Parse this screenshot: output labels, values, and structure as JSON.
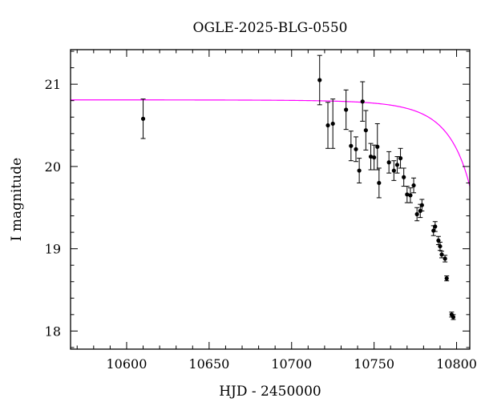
{
  "chart_data": {
    "type": "scatter",
    "title": "OGLE-2025-BLG-0550",
    "xlabel": "HJD - 2450000",
    "ylabel": "I magnitude",
    "xlim": [
      10566,
      10808
    ],
    "ylim": [
      21.42,
      17.78
    ],
    "y_inverted": true,
    "xticks_major": [
      10600,
      10650,
      10700,
      10750,
      10800
    ],
    "xticks_minor_step": 10,
    "yticks_major": [
      18,
      19,
      20,
      21
    ],
    "yticks_minor_step": 0.2,
    "grid": false,
    "series": [
      {
        "kind": "points_with_errorbars",
        "color": "#000000",
        "points": [
          {
            "x": 10610,
            "y": 20.58,
            "err": 0.24
          },
          {
            "x": 10717,
            "y": 21.05,
            "err": 0.3
          },
          {
            "x": 10722,
            "y": 20.5,
            "err": 0.28
          },
          {
            "x": 10725,
            "y": 20.52,
            "err": 0.3
          },
          {
            "x": 10733,
            "y": 20.69,
            "err": 0.24
          },
          {
            "x": 10736,
            "y": 20.25,
            "err": 0.18
          },
          {
            "x": 10739,
            "y": 20.21,
            "err": 0.15
          },
          {
            "x": 10741,
            "y": 19.95,
            "err": 0.15
          },
          {
            "x": 10743,
            "y": 20.79,
            "err": 0.24
          },
          {
            "x": 10745,
            "y": 20.44,
            "err": 0.24
          },
          {
            "x": 10748,
            "y": 20.12,
            "err": 0.16
          },
          {
            "x": 10750,
            "y": 20.11,
            "err": 0.15
          },
          {
            "x": 10752,
            "y": 20.24,
            "err": 0.28
          },
          {
            "x": 10753,
            "y": 19.8,
            "err": 0.18
          },
          {
            "x": 10759,
            "y": 20.05,
            "err": 0.13
          },
          {
            "x": 10762,
            "y": 19.95,
            "err": 0.12
          },
          {
            "x": 10764,
            "y": 20.02,
            "err": 0.1
          },
          {
            "x": 10766,
            "y": 20.1,
            "err": 0.12
          },
          {
            "x": 10768,
            "y": 19.87,
            "err": 0.11
          },
          {
            "x": 10770,
            "y": 19.66,
            "err": 0.1
          },
          {
            "x": 10772,
            "y": 19.65,
            "err": 0.09
          },
          {
            "x": 10774,
            "y": 19.77,
            "err": 0.09
          },
          {
            "x": 10776,
            "y": 19.42,
            "err": 0.08
          },
          {
            "x": 10778,
            "y": 19.46,
            "err": 0.08
          },
          {
            "x": 10779,
            "y": 19.53,
            "err": 0.07
          },
          {
            "x": 10786,
            "y": 19.22,
            "err": 0.06
          },
          {
            "x": 10787,
            "y": 19.27,
            "err": 0.06
          },
          {
            "x": 10789,
            "y": 19.1,
            "err": 0.05
          },
          {
            "x": 10790,
            "y": 19.03,
            "err": 0.05
          },
          {
            "x": 10791,
            "y": 18.93,
            "err": 0.04
          },
          {
            "x": 10793,
            "y": 18.88,
            "err": 0.04
          },
          {
            "x": 10794,
            "y": 18.64,
            "err": 0.03
          },
          {
            "x": 10797,
            "y": 18.2,
            "err": 0.03
          },
          {
            "x": 10798,
            "y": 18.17,
            "err": 0.03
          }
        ]
      },
      {
        "kind": "model_curve",
        "color": "#ff00ff",
        "model": {
          "baseline": 20.81,
          "t0": 10820,
          "tE": 30,
          "u0": 0.05
        }
      }
    ]
  }
}
